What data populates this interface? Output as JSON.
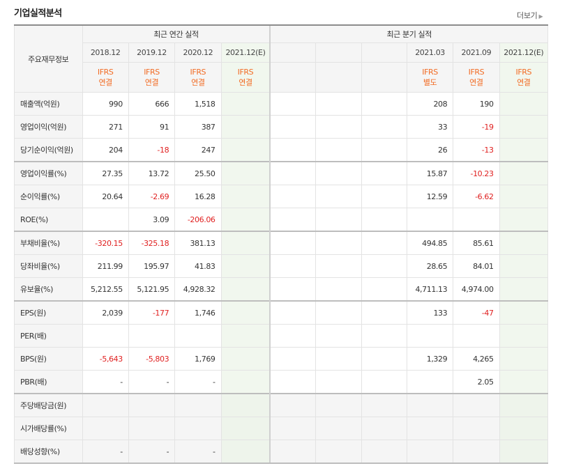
{
  "header": {
    "title": "기업실적분석",
    "more_label": "더보기"
  },
  "table": {
    "corner_label": "주요재무정보",
    "group_annual": "최근 연간 실적",
    "group_quarter": "최근 분기 실적",
    "annual_periods": [
      {
        "label": "2018.12",
        "std1": "IFRS",
        "std2": "연결"
      },
      {
        "label": "2019.12",
        "std1": "IFRS",
        "std2": "연결"
      },
      {
        "label": "2020.12",
        "std1": "IFRS",
        "std2": "연결"
      },
      {
        "label": "2021.12(E)",
        "std1": "IFRS",
        "std2": "연결"
      }
    ],
    "quarter_periods": [
      {
        "label": "",
        "std1": "",
        "std2": ""
      },
      {
        "label": "",
        "std1": "",
        "std2": ""
      },
      {
        "label": "",
        "std1": "",
        "std2": ""
      },
      {
        "label": "2021.03",
        "std1": "IFRS",
        "std2": "별도"
      },
      {
        "label": "2021.09",
        "std1": "IFRS",
        "std2": "연결"
      },
      {
        "label": "2021.12(E)",
        "std1": "IFRS",
        "std2": "연결"
      }
    ],
    "rows": [
      {
        "label": "매출액(억원)",
        "annual": [
          "990",
          "666",
          "1,518",
          ""
        ],
        "quarter": [
          "",
          "",
          "",
          "208",
          "190",
          ""
        ]
      },
      {
        "label": "영업이익(억원)",
        "annual": [
          "271",
          "91",
          "387",
          ""
        ],
        "quarter": [
          "",
          "",
          "",
          "33",
          "-19",
          ""
        ]
      },
      {
        "label": "당기순이익(억원)",
        "annual": [
          "204",
          "-18",
          "247",
          ""
        ],
        "quarter": [
          "",
          "",
          "",
          "26",
          "-13",
          ""
        ]
      },
      {
        "label": "영업이익률(%)",
        "annual": [
          "27.35",
          "13.72",
          "25.50",
          ""
        ],
        "quarter": [
          "",
          "",
          "",
          "15.87",
          "-10.23",
          ""
        ]
      },
      {
        "label": "순이익률(%)",
        "annual": [
          "20.64",
          "-2.69",
          "16.28",
          ""
        ],
        "quarter": [
          "",
          "",
          "",
          "12.59",
          "-6.62",
          ""
        ]
      },
      {
        "label": "ROE(%)",
        "annual": [
          "",
          "3.09",
          "-206.06",
          ""
        ],
        "quarter": [
          "",
          "",
          "",
          "",
          "",
          ""
        ]
      },
      {
        "label": "부채비율(%)",
        "annual": [
          "-320.15",
          "-325.18",
          "381.13",
          ""
        ],
        "quarter": [
          "",
          "",
          "",
          "494.85",
          "85.61",
          ""
        ]
      },
      {
        "label": "당좌비율(%)",
        "annual": [
          "211.99",
          "195.97",
          "41.83",
          ""
        ],
        "quarter": [
          "",
          "",
          "",
          "28.65",
          "84.01",
          ""
        ]
      },
      {
        "label": "유보율(%)",
        "annual": [
          "5,212.55",
          "5,121.95",
          "4,928.32",
          ""
        ],
        "quarter": [
          "",
          "",
          "",
          "4,711.13",
          "4,974.00",
          ""
        ]
      },
      {
        "label": "EPS(원)",
        "annual": [
          "2,039",
          "-177",
          "1,746",
          ""
        ],
        "quarter": [
          "",
          "",
          "",
          "133",
          "-47",
          ""
        ]
      },
      {
        "label": "PER(배)",
        "annual": [
          "",
          "",
          "",
          ""
        ],
        "quarter": [
          "",
          "",
          "",
          "",
          "",
          ""
        ]
      },
      {
        "label": "BPS(원)",
        "annual": [
          "-5,643",
          "-5,803",
          "1,769",
          ""
        ],
        "quarter": [
          "",
          "",
          "",
          "1,329",
          "4,265",
          ""
        ]
      },
      {
        "label": "PBR(배)",
        "annual": [
          "-",
          "-",
          "-",
          ""
        ],
        "quarter": [
          "",
          "",
          "",
          "",
          "2.05",
          ""
        ]
      },
      {
        "label": "주당배당금(원)",
        "annual": [
          "",
          "",
          "",
          ""
        ],
        "quarter": [
          "",
          "",
          "",
          "",
          "",
          ""
        ]
      },
      {
        "label": "시가배당률(%)",
        "annual": [
          "",
          "",
          "",
          ""
        ],
        "quarter": [
          "",
          "",
          "",
          "",
          "",
          ""
        ]
      },
      {
        "label": "배당성향(%)",
        "annual": [
          "-",
          "-",
          "-",
          ""
        ],
        "quarter": [
          "",
          "",
          "",
          "",
          "",
          ""
        ]
      }
    ]
  },
  "colors": {
    "negative": "#e02020",
    "standard": "#f26b23",
    "estimate_bg": "#f1f7ee"
  }
}
